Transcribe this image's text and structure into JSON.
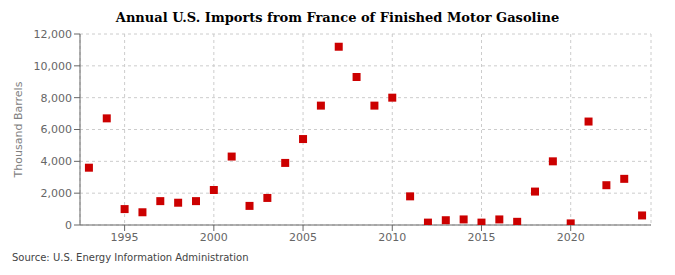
{
  "chart_data": {
    "type": "scatter",
    "title": "Annual U.S. Imports from France of Finished Motor Gasoline",
    "ylabel": "Thousand Barrels",
    "annotation": "Source: U.S. Energy Information Administration",
    "x": [
      1993,
      1994,
      1995,
      1996,
      1997,
      1998,
      1999,
      2000,
      2001,
      2002,
      2003,
      2004,
      2005,
      2006,
      2007,
      2008,
      2009,
      2010,
      2011,
      2012,
      2013,
      2014,
      2015,
      2016,
      2017,
      2018,
      2019,
      2020,
      2021,
      2022,
      2023,
      2024
    ],
    "values": [
      3600,
      6700,
      1000,
      800,
      1500,
      1400,
      1500,
      2200,
      4300,
      1200,
      1700,
      3900,
      5400,
      7500,
      11200,
      9300,
      7500,
      8000,
      1800,
      150,
      300,
      350,
      150,
      350,
      200,
      2100,
      4000,
      100,
      6500,
      2500,
      2900,
      600
    ],
    "color": "#cc0000",
    "marker": "square",
    "xlim": [
      1992.5,
      2024.5
    ],
    "xticks": [
      1995,
      2000,
      2005,
      2010,
      2015,
      2020
    ],
    "ylim": [
      0,
      12000
    ],
    "yticks": [
      0,
      {
        "value": 2000,
        "label": "2,000"
      },
      {
        "value": 4000,
        "label": "4,000"
      },
      {
        "value": 6000,
        "label": "6,000"
      },
      {
        "value": 8000,
        "label": "8,000"
      },
      {
        "value": 10000,
        "label": "10,000"
      },
      {
        "value": 12000,
        "label": "12,000"
      }
    ],
    "grid": true
  }
}
